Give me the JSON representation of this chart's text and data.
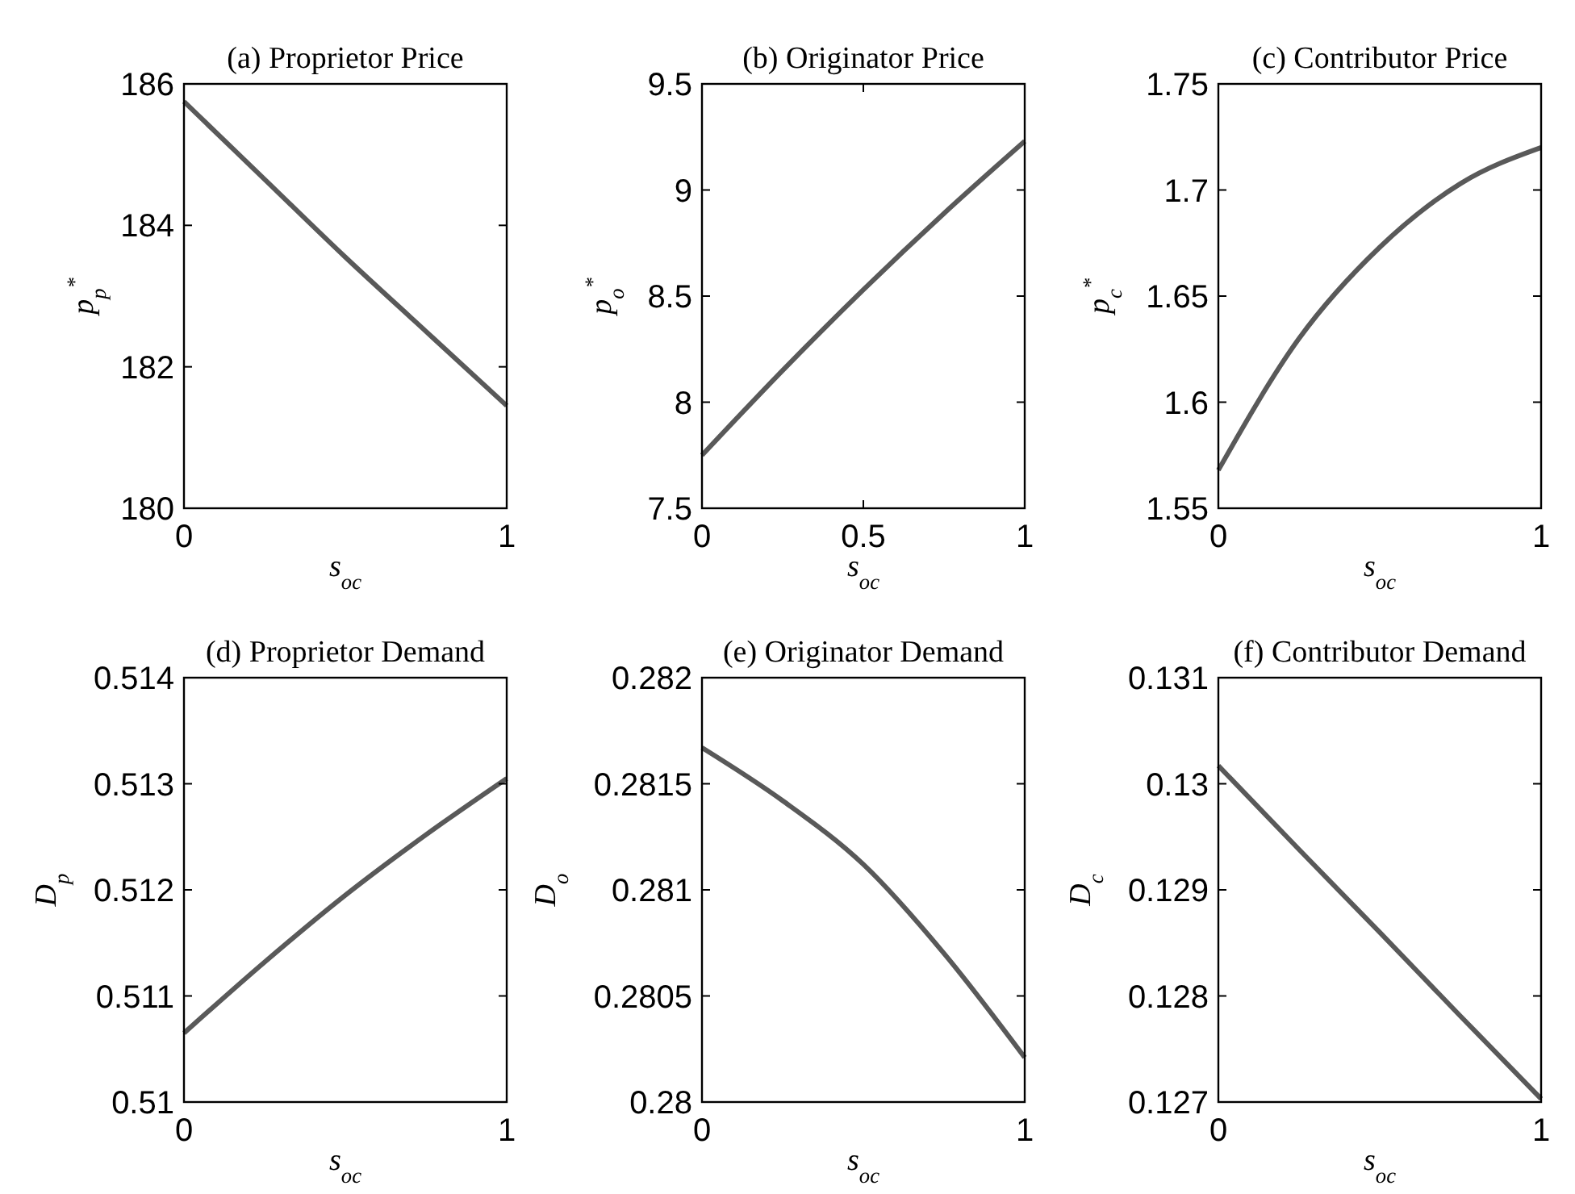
{
  "chart_data": [
    {
      "type": "line",
      "title": "(a) Proprietor Price",
      "xlabel": "s$_{oc}$",
      "ylabel": "p$_{p}$$^{*}$",
      "x": [
        0,
        0.25,
        0.5,
        0.75,
        1
      ],
      "series": [
        {
          "color": "#595959",
          "values": [
            185.75,
            184.65,
            183.55,
            182.5,
            181.45
          ]
        }
      ],
      "xlim": [
        0,
        1
      ],
      "xticks": [
        0,
        1
      ],
      "ylim": [
        180,
        186
      ],
      "yticks": [
        180,
        182,
        184,
        186
      ]
    },
    {
      "type": "line",
      "title": "(b) Originator Price",
      "xlabel": "s$_{oc}$",
      "ylabel": "p$_{o}$$^{*}$",
      "x": [
        0,
        0.25,
        0.5,
        0.75,
        1
      ],
      "series": [
        {
          "color": "#595959",
          "values": [
            7.75,
            8.15,
            8.53,
            8.89,
            9.23
          ]
        }
      ],
      "xlim": [
        0,
        1
      ],
      "xticks": [
        0,
        0.5,
        1
      ],
      "ylim": [
        7.5,
        9.5
      ],
      "yticks": [
        7.5,
        8,
        8.5,
        9,
        9.5
      ]
    },
    {
      "type": "line",
      "title": "(c) Contributor Price",
      "xlabel": "s$_{oc}$",
      "ylabel": "p$_{c}$$^{*}$",
      "x": [
        0,
        0.25,
        0.5,
        0.75,
        1
      ],
      "series": [
        {
          "color": "#595959",
          "values": [
            1.568,
            1.63,
            1.673,
            1.703,
            1.72
          ]
        }
      ],
      "xlim": [
        0,
        1
      ],
      "xticks": [
        0,
        1
      ],
      "ylim": [
        1.55,
        1.75
      ],
      "yticks": [
        1.55,
        1.6,
        1.65,
        1.7,
        1.75
      ]
    },
    {
      "type": "line",
      "title": "(d) Proprietor Demand",
      "xlabel": "s$_{oc}$",
      "ylabel": "D$_{p}$",
      "x": [
        0,
        0.25,
        0.5,
        0.75,
        1
      ],
      "series": [
        {
          "color": "#595959",
          "values": [
            0.51065,
            0.51132,
            0.51195,
            0.51252,
            0.51305
          ]
        }
      ],
      "xlim": [
        0,
        1
      ],
      "xticks": [
        0,
        1
      ],
      "ylim": [
        0.51,
        0.514
      ],
      "yticks": [
        0.51,
        0.511,
        0.512,
        0.513,
        0.514
      ]
    },
    {
      "type": "line",
      "title": "(e) Originator Demand",
      "xlabel": "s$_{oc}$",
      "ylabel": "D$_{o}$",
      "x": [
        0,
        0.25,
        0.5,
        0.75,
        1
      ],
      "series": [
        {
          "color": "#595959",
          "values": [
            0.28167,
            0.28142,
            0.28112,
            0.2807,
            0.28021
          ]
        }
      ],
      "xlim": [
        0,
        1
      ],
      "xticks": [
        0,
        1
      ],
      "ylim": [
        0.28,
        0.282
      ],
      "yticks": [
        0.28,
        0.2805,
        0.281,
        0.2815,
        0.282
      ]
    },
    {
      "type": "line",
      "title": "(f) Contributor Demand",
      "xlabel": "s$_{oc}$",
      "ylabel": "D$_{c}$",
      "x": [
        0,
        0.25,
        0.5,
        0.75,
        1
      ],
      "series": [
        {
          "color": "#595959",
          "values": [
            0.13017,
            0.12938,
            0.1286,
            0.12781,
            0.12703
          ]
        }
      ],
      "xlim": [
        0,
        1
      ],
      "xticks": [
        0,
        1
      ],
      "ylim": [
        0.127,
        0.131
      ],
      "yticks": [
        0.127,
        0.128,
        0.129,
        0.13,
        0.131
      ]
    }
  ]
}
